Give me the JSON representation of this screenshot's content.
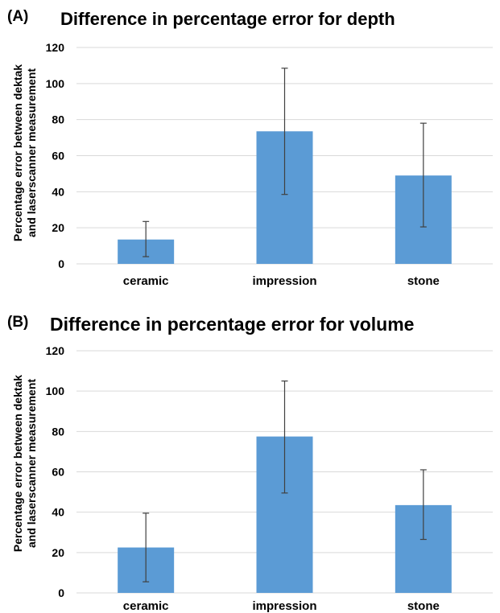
{
  "chart_data": [
    {
      "type": "bar",
      "panel_label": "(A)",
      "title": "Difference in percentage error for depth",
      "ylabel": [
        "Percentage error between dektak",
        "and laserscanner measurement"
      ],
      "xlabel": "",
      "categories": [
        "ceramic",
        "impression",
        "stone"
      ],
      "values": [
        13.5,
        73.5,
        49
      ],
      "error_low": [
        4,
        38.5,
        20.5
      ],
      "error_high": [
        23.5,
        108.5,
        78
      ],
      "ylim": [
        0,
        120
      ],
      "yticks": [
        "0",
        "20",
        "40",
        "60",
        "80",
        "100",
        "120"
      ],
      "grid": true,
      "bar_color": "#5b9bd5",
      "grid_color": "#d9d9d9"
    },
    {
      "type": "bar",
      "panel_label": "(B)",
      "title": "Difference in percentage error for volume",
      "ylabel": [
        "Percentage error between dektak",
        "and laserscanner measurement"
      ],
      "xlabel": "",
      "categories": [
        "ceramic",
        "impression",
        "stone"
      ],
      "values": [
        22.5,
        77.5,
        43.5
      ],
      "error_low": [
        5.5,
        49.5,
        26.5
      ],
      "error_high": [
        39.5,
        105,
        61
      ],
      "ylim": [
        0,
        120
      ],
      "yticks": [
        "0",
        "20",
        "40",
        "60",
        "80",
        "100",
        "120"
      ],
      "grid": true,
      "bar_color": "#5b9bd5",
      "grid_color": "#d9d9d9"
    }
  ]
}
